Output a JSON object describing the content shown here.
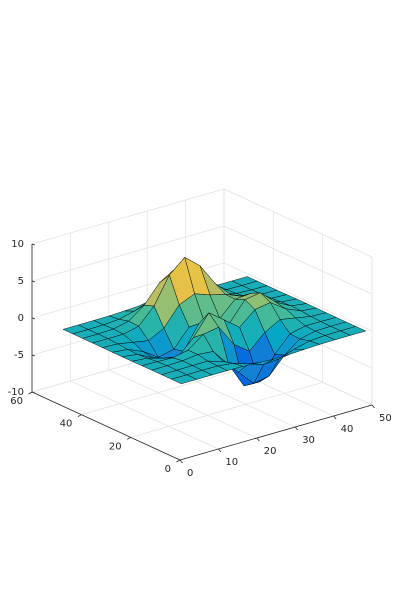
{
  "chart_data": {
    "type": "surface",
    "x": [
      1,
      5,
      9,
      13,
      17,
      21,
      25,
      29,
      33,
      37,
      41,
      45,
      49
    ],
    "y": [
      1,
      5,
      9,
      13,
      17,
      21,
      25,
      29,
      33,
      37,
      41,
      45,
      49
    ],
    "z": [
      [
        0,
        0,
        0,
        0,
        -0.03,
        -0.14,
        -0.24,
        -0.22,
        -0.11,
        -0.03,
        -0.01,
        0,
        0
      ],
      [
        0,
        0,
        0.02,
        0,
        -0.23,
        -0.91,
        -1.57,
        -1.41,
        -0.69,
        -0.18,
        -0.03,
        0,
        0
      ],
      [
        0,
        0.01,
        0.05,
        0.05,
        -0.59,
        -2.63,
        -4.75,
        -4.34,
        -2.1,
        -0.53,
        -0.06,
        0,
        0
      ],
      [
        0,
        0.01,
        0.08,
        0.33,
        0.15,
        -2.19,
        -5.68,
        -5.76,
        -2.64,
        -0.44,
        0.04,
        0.03,
        0
      ],
      [
        -0.01,
        -0.06,
        -0.13,
        0.3,
        1.86,
        2.22,
        -0.72,
        -2.22,
        -0.27,
        0.88,
        0.5,
        0.11,
        0.01
      ],
      [
        -0.03,
        -0.2,
        -0.8,
        -1.21,
        0.8,
        3.55,
        2,
        0.39,
        2.2,
        2.56,
        1.12,
        0.24,
        0.03
      ],
      [
        -0.04,
        -0.3,
        -1.33,
        -2.77,
        -1.65,
        1.48,
        0.98,
        0.38,
        2.94,
        3.27,
        1.41,
        0.3,
        0.03
      ],
      [
        -0.03,
        -0.25,
        -1.12,
        -2.49,
        -2,
        0.39,
        0.46,
        0.38,
        2.38,
        2.56,
        1.09,
        0.23,
        0.03
      ],
      [
        -0.01,
        -0.11,
        -0.48,
        -0.86,
        0.23,
        2.79,
        3.69,
        2.94,
        2.43,
        1.58,
        0.58,
        0.11,
        0.01
      ],
      [
        0,
        -0.02,
        -0.01,
        0.47,
        2.61,
        6.2,
        8,
        6.25,
        3.25,
        1.19,
        0.29,
        0.05,
        0
      ],
      [
        0,
        0.01,
        0.08,
        0.55,
        2.1,
        4.55,
        5.85,
        4.56,
        2.21,
        0.68,
        0.13,
        0.02,
        0
      ],
      [
        0,
        0,
        0.03,
        0.19,
        0.69,
        1.47,
        1.88,
        1.47,
        0.7,
        0.2,
        0.04,
        0,
        0
      ],
      [
        0,
        0,
        0.01,
        0.03,
        0.11,
        0.23,
        0.3,
        0.23,
        0.11,
        0.03,
        0.01,
        0,
        0
      ]
    ],
    "xlim": [
      0,
      50
    ],
    "ylim": [
      0,
      60
    ],
    "zlim": [
      -10,
      10
    ],
    "xticks": [
      0,
      10,
      20,
      30,
      40,
      50
    ],
    "yticks": [
      0,
      20,
      40,
      60
    ],
    "zticks": [
      -10,
      -5,
      0,
      5,
      10
    ],
    "grid": true,
    "colormap": [
      "#352a87",
      "#0363e1",
      "#1485d4",
      "#06a7c6",
      "#38b99e",
      "#92bf73",
      "#d9ba56",
      "#fcce2e",
      "#f9fb0e"
    ],
    "edge_color": "#000000"
  }
}
